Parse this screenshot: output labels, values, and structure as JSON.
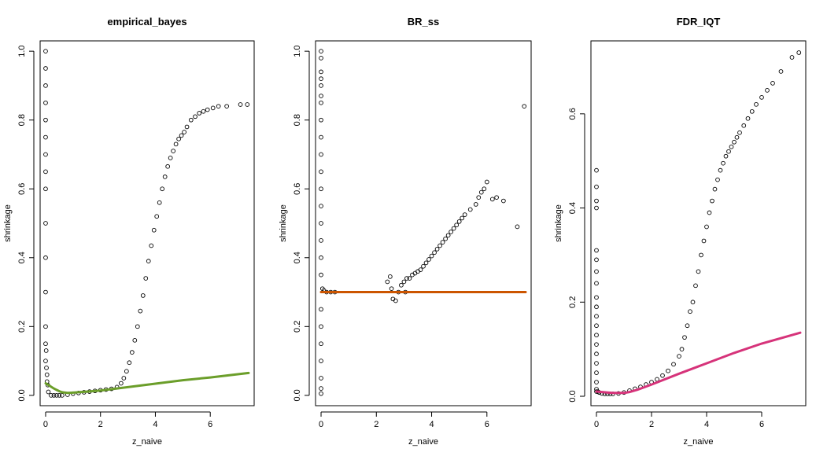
{
  "chart_data": [
    {
      "type": "scatter",
      "title": "empirical_bayes",
      "xlabel": "z_naive",
      "ylabel": "shrinkage",
      "xlim": [
        -0.2,
        7.6
      ],
      "ylim": [
        -0.03,
        1.03
      ],
      "xticks": [
        0,
        2,
        4,
        6
      ],
      "yticks": [
        0.0,
        0.2,
        0.4,
        0.6,
        0.8,
        1.0
      ],
      "grid": false,
      "points": {
        "x": [
          0,
          0,
          0,
          0,
          0,
          0,
          0,
          0,
          0,
          0,
          0,
          0,
          0,
          0,
          0,
          0.02,
          0.03,
          0.05,
          0.05,
          0.08,
          0.1,
          0.2,
          0.3,
          0.4,
          0.5,
          0.6,
          0.8,
          1.0,
          1.2,
          1.4,
          1.6,
          1.8,
          2.0,
          2.2,
          2.4,
          2.6,
          2.75,
          2.85,
          2.95,
          3.05,
          3.15,
          3.25,
          3.35,
          3.45,
          3.55,
          3.65,
          3.75,
          3.85,
          3.95,
          4.05,
          4.15,
          4.25,
          4.35,
          4.45,
          4.55,
          4.65,
          4.75,
          4.85,
          4.95,
          5.05,
          5.15,
          5.3,
          5.45,
          5.6,
          5.75,
          5.9,
          6.1,
          6.3,
          6.6,
          7.1,
          7.35
        ],
        "y": [
          1.0,
          0.95,
          0.9,
          0.85,
          0.8,
          0.75,
          0.7,
          0.65,
          0.6,
          0.5,
          0.4,
          0.3,
          0.2,
          0.15,
          0.1,
          0.13,
          0.08,
          0.06,
          0.04,
          0.03,
          0.01,
          0.0,
          0.0,
          0.0,
          0.0,
          0.0,
          0.002,
          0.005,
          0.007,
          0.009,
          0.011,
          0.013,
          0.015,
          0.017,
          0.019,
          0.024,
          0.035,
          0.05,
          0.07,
          0.095,
          0.125,
          0.16,
          0.2,
          0.245,
          0.29,
          0.34,
          0.39,
          0.435,
          0.48,
          0.52,
          0.56,
          0.6,
          0.635,
          0.665,
          0.69,
          0.71,
          0.73,
          0.745,
          0.755,
          0.765,
          0.78,
          0.8,
          0.81,
          0.82,
          0.825,
          0.83,
          0.835,
          0.84,
          0.84,
          0.845,
          0.845
        ]
      },
      "series": [
        {
          "color": "#6b9e2a",
          "x": [
            0,
            0.1,
            0.2,
            0.3,
            0.4,
            0.5,
            0.6,
            0.8,
            1.0,
            1.2,
            1.5,
            2.0,
            3.0,
            4.0,
            5.0,
            6.0,
            7.4
          ],
          "y": [
            0.035,
            0.03,
            0.025,
            0.02,
            0.016,
            0.012,
            0.009,
            0.007,
            0.008,
            0.009,
            0.011,
            0.014,
            0.024,
            0.034,
            0.044,
            0.052,
            0.065
          ]
        }
      ]
    },
    {
      "type": "scatter",
      "title": "BR_ss",
      "xlabel": "z_naive",
      "ylabel": "shrinkage",
      "xlim": [
        -0.2,
        7.6
      ],
      "ylim": [
        -0.03,
        1.03
      ],
      "xticks": [
        0,
        2,
        4,
        6
      ],
      "yticks": [
        0.0,
        0.2,
        0.4,
        0.6,
        0.8,
        1.0
      ],
      "grid": false,
      "points": {
        "x": [
          0,
          0,
          0,
          0,
          0,
          0,
          0,
          0,
          0,
          0,
          0,
          0,
          0,
          0,
          0,
          0,
          0,
          0,
          0,
          0,
          0,
          0,
          0,
          0,
          0.05,
          0.1,
          0.2,
          0.35,
          0.5,
          2.4,
          2.5,
          2.55,
          2.6,
          2.7,
          2.8,
          2.9,
          3.0,
          3.05,
          3.1,
          3.2,
          3.3,
          3.4,
          3.5,
          3.6,
          3.7,
          3.8,
          3.9,
          4.0,
          4.1,
          4.2,
          4.3,
          4.4,
          4.5,
          4.6,
          4.7,
          4.8,
          4.9,
          5.0,
          5.1,
          5.2,
          5.4,
          5.6,
          5.7,
          5.8,
          5.9,
          6.0,
          6.2,
          6.35,
          6.6,
          7.1,
          7.35
        ],
        "y": [
          1.0,
          0.98,
          0.94,
          0.92,
          0.9,
          0.87,
          0.85,
          0.8,
          0.75,
          0.7,
          0.65,
          0.6,
          0.55,
          0.5,
          0.45,
          0.4,
          0.35,
          0.25,
          0.2,
          0.15,
          0.1,
          0.05,
          0.02,
          0.005,
          0.31,
          0.305,
          0.3,
          0.3,
          0.3,
          0.33,
          0.345,
          0.31,
          0.28,
          0.275,
          0.3,
          0.32,
          0.33,
          0.3,
          0.34,
          0.34,
          0.35,
          0.355,
          0.36,
          0.365,
          0.375,
          0.385,
          0.395,
          0.405,
          0.415,
          0.425,
          0.435,
          0.445,
          0.455,
          0.465,
          0.475,
          0.485,
          0.495,
          0.505,
          0.515,
          0.525,
          0.54,
          0.555,
          0.575,
          0.59,
          0.6,
          0.62,
          0.57,
          0.575,
          0.565,
          0.49,
          0.84
        ]
      },
      "series": [
        {
          "color": "#cc5500",
          "x": [
            0,
            7.4
          ],
          "y": [
            0.3,
            0.3
          ]
        }
      ]
    },
    {
      "type": "scatter",
      "title": "FDR_IQT",
      "xlabel": "z_naive",
      "ylabel": "shrinkage",
      "xlim": [
        -0.2,
        7.6
      ],
      "ylim": [
        -0.02,
        0.755
      ],
      "xticks": [
        0,
        2,
        4,
        6
      ],
      "yticks": [
        0.0,
        0.2,
        0.4,
        0.6
      ],
      "grid": false,
      "points": {
        "x": [
          0,
          0,
          0,
          0,
          0,
          0,
          0,
          0,
          0,
          0,
          0,
          0,
          0,
          0,
          0,
          0,
          0,
          0,
          0,
          0,
          0.05,
          0.1,
          0.2,
          0.3,
          0.4,
          0.5,
          0.6,
          0.8,
          1.0,
          1.2,
          1.4,
          1.6,
          1.8,
          2.0,
          2.2,
          2.4,
          2.6,
          2.8,
          3.0,
          3.1,
          3.2,
          3.3,
          3.4,
          3.5,
          3.6,
          3.7,
          3.8,
          3.9,
          4.0,
          4.1,
          4.2,
          4.3,
          4.4,
          4.5,
          4.6,
          4.7,
          4.8,
          4.9,
          5.0,
          5.1,
          5.2,
          5.35,
          5.5,
          5.65,
          5.8,
          6.0,
          6.2,
          6.4,
          6.7,
          7.1,
          7.35
        ],
        "y": [
          0.48,
          0.445,
          0.415,
          0.4,
          0.31,
          0.29,
          0.265,
          0.24,
          0.21,
          0.19,
          0.17,
          0.15,
          0.13,
          0.11,
          0.09,
          0.07,
          0.05,
          0.03,
          0.015,
          0.01,
          0.01,
          0.008,
          0.006,
          0.005,
          0.005,
          0.005,
          0.005,
          0.006,
          0.008,
          0.012,
          0.016,
          0.02,
          0.025,
          0.03,
          0.036,
          0.044,
          0.054,
          0.068,
          0.085,
          0.1,
          0.125,
          0.15,
          0.18,
          0.2,
          0.235,
          0.265,
          0.3,
          0.33,
          0.36,
          0.39,
          0.415,
          0.44,
          0.46,
          0.48,
          0.495,
          0.51,
          0.52,
          0.53,
          0.54,
          0.55,
          0.56,
          0.575,
          0.59,
          0.605,
          0.62,
          0.635,
          0.65,
          0.665,
          0.69,
          0.72,
          0.73
        ]
      },
      "series": [
        {
          "color": "#d6337a",
          "x": [
            0,
            0.2,
            0.4,
            0.6,
            0.8,
            1.0,
            1.2,
            1.5,
            2.0,
            3.0,
            4.0,
            5.0,
            6.0,
            7.4
          ],
          "y": [
            0.01,
            0.009,
            0.008,
            0.007,
            0.007,
            0.007,
            0.009,
            0.014,
            0.025,
            0.048,
            0.07,
            0.092,
            0.112,
            0.135
          ]
        }
      ]
    }
  ]
}
